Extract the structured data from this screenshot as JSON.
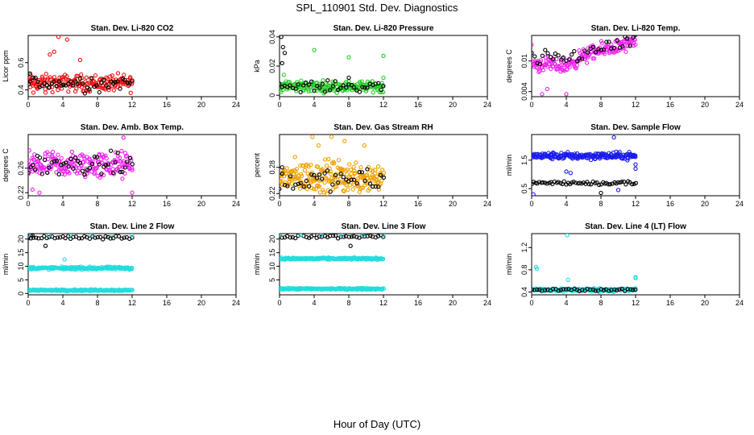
{
  "figure": {
    "title": "SPL_110901  Std. Dev. Diagnostics",
    "xlabel": "Hour of Day (UTC)"
  },
  "colors": {
    "black": "#000000",
    "red": "#ee1111",
    "green": "#22cc22",
    "magenta": "#ee22ee",
    "orange": "#f0a000",
    "blue": "#1a1aee",
    "cyan": "#22dddd"
  },
  "chart_data": [
    {
      "type": "scatter",
      "title": "Stan. Dev. Li-820 CO2",
      "ylabel": "Licor ppm",
      "xlim": [
        0,
        24
      ],
      "ylim": [
        0.35,
        0.8
      ],
      "xticks": [
        0,
        4,
        8,
        12,
        16,
        20,
        24
      ],
      "yticks": [
        0.4,
        0.6
      ],
      "series": [
        {
          "name": "co2-red",
          "color": "red",
          "xrange": [
            0,
            12
          ],
          "n": 170,
          "mean": 0.45,
          "spread": 0.05,
          "outliers": [
            [
              3.5,
              0.79
            ],
            [
              4.5,
              0.77
            ],
            [
              3.0,
              0.68
            ],
            [
              2.5,
              0.66
            ],
            [
              6.0,
              0.62
            ],
            [
              0.6,
              0.38
            ],
            [
              2.0,
              0.38
            ]
          ]
        },
        {
          "name": "co2-black",
          "color": "black",
          "xrange": [
            0,
            12
          ],
          "n": 45,
          "mean": 0.45,
          "spread": 0.05,
          "outliers": [
            [
              0.2,
              0.52
            ]
          ]
        }
      ]
    },
    {
      "type": "scatter",
      "title": "Stan. Dev. Li-820 Pressure",
      "ylabel": "kPa",
      "xlim": [
        0,
        24
      ],
      "ylim": [
        -0.001,
        0.041
      ],
      "xticks": [
        0,
        4,
        8,
        12,
        16,
        20,
        24
      ],
      "yticks": [
        0.0,
        0.02,
        0.04
      ],
      "series": [
        {
          "name": "pressure-green",
          "color": "green",
          "xrange": [
            0,
            12
          ],
          "n": 170,
          "mean": 0.006,
          "spread": 0.003,
          "outliers": [
            [
              4.0,
              0.031
            ],
            [
              8.0,
              0.026
            ],
            [
              12.0,
              0.027
            ],
            [
              0.5,
              0.014
            ],
            [
              2.5,
              0.01
            ],
            [
              12,
              0.012
            ]
          ]
        },
        {
          "name": "pressure-black",
          "color": "black",
          "xrange": [
            0,
            12
          ],
          "n": 40,
          "mean": 0.006,
          "spread": 0.003,
          "outliers": [
            [
              0.2,
              0.04
            ],
            [
              0.4,
              0.033
            ],
            [
              0.6,
              0.029
            ],
            [
              0.3,
              0.022
            ],
            [
              8,
              0.012
            ]
          ]
        }
      ]
    },
    {
      "type": "scatter",
      "title": "Stan. Dev. Li-820 Temp.",
      "ylabel": "degrees C",
      "xlim": [
        0,
        24
      ],
      "ylim": [
        0.003,
        0.015
      ],
      "xticks": [
        0,
        4,
        8,
        12,
        16,
        20,
        24
      ],
      "yticks": [
        0.004,
        0.01
      ],
      "series": [
        {
          "name": "temp-magenta",
          "color": "magenta",
          "xrange": [
            0,
            12
          ],
          "n": 180,
          "mean": 0.0095,
          "spread": 0.0012,
          "trend": [
            [
              0,
              0.0095
            ],
            [
              4,
              0.009
            ],
            [
              6,
              0.011
            ],
            [
              9,
              0.0125
            ],
            [
              12,
              0.0135
            ]
          ],
          "outliers": [
            [
              1.2,
              0.0035
            ],
            [
              4,
              0.0035
            ],
            [
              1.8,
              0.0045
            ]
          ]
        },
        {
          "name": "temp-black",
          "color": "black",
          "xrange": [
            0,
            12
          ],
          "n": 40,
          "mean": 0.0095,
          "spread": 0.0012,
          "trend": [
            [
              0,
              0.0105
            ],
            [
              4,
              0.0105
            ],
            [
              6,
              0.0115
            ],
            [
              9,
              0.013
            ],
            [
              12,
              0.0135
            ]
          ],
          "outliers": []
        }
      ]
    },
    {
      "type": "scatter",
      "title": "Stan. Dev. Amb. Box Temp.",
      "ylabel": "degrees C",
      "xlim": [
        0,
        24
      ],
      "ylim": [
        0.215,
        0.315
      ],
      "xticks": [
        0,
        4,
        8,
        12,
        16,
        20,
        24
      ],
      "yticks": [
        0.22,
        0.26
      ],
      "series": [
        {
          "name": "boxtemp-magenta",
          "color": "magenta",
          "xrange": [
            0,
            12
          ],
          "n": 190,
          "mean": 0.265,
          "spread": 0.018,
          "outliers": [
            [
              11,
              0.31
            ],
            [
              0.5,
              0.225
            ],
            [
              12,
              0.22
            ],
            [
              1.3,
              0.22
            ]
          ]
        },
        {
          "name": "boxtemp-black",
          "color": "black",
          "xrange": [
            0,
            12
          ],
          "n": 45,
          "mean": 0.265,
          "spread": 0.015,
          "outliers": []
        }
      ]
    },
    {
      "type": "scatter",
      "title": "Stan. Dev. Gas Stream RH",
      "ylabel": "percent",
      "xlim": [
        0,
        24
      ],
      "ylim": [
        0.215,
        0.355
      ],
      "xticks": [
        0,
        4,
        8,
        12,
        16,
        20,
        24
      ],
      "yticks": [
        0.22,
        0.28
      ],
      "series": [
        {
          "name": "rh-orange",
          "color": "orange",
          "xrange": [
            0,
            12
          ],
          "n": 230,
          "mean": 0.258,
          "spread": 0.03,
          "outliers": [
            [
              3.8,
              0.35
            ],
            [
              6.0,
              0.35
            ],
            [
              7.5,
              0.34
            ],
            [
              9.8,
              0.33
            ],
            [
              4.5,
              0.33
            ]
          ]
        },
        {
          "name": "rh-black",
          "color": "black",
          "xrange": [
            0,
            12
          ],
          "n": 40,
          "mean": 0.25,
          "spread": 0.02,
          "outliers": [
            [
              0.3,
              0.28
            ]
          ]
        }
      ]
    },
    {
      "type": "scatter",
      "title": "Stan. Dev. Sample Flow",
      "ylabel": "ml/min",
      "xlim": [
        0,
        24
      ],
      "ylim": [
        0.25,
        2.4
      ],
      "xticks": [
        0,
        4,
        8,
        12,
        16,
        20,
        24
      ],
      "yticks": [
        0.5,
        1.5
      ],
      "series": [
        {
          "name": "flow-blue",
          "color": "blue",
          "xrange": [
            0,
            12
          ],
          "n": 200,
          "mean": 1.65,
          "spread": 0.1,
          "outliers": [
            [
              4.0,
              1.1
            ],
            [
              4.5,
              1.05
            ],
            [
              9.5,
              2.3
            ],
            [
              10,
              0.45
            ],
            [
              0.2,
              0.3
            ],
            [
              12,
              1.2
            ],
            [
              12,
              1.35
            ]
          ]
        },
        {
          "name": "flow-black",
          "color": "black",
          "xrange": [
            0,
            12
          ],
          "n": 55,
          "mean": 0.7,
          "spread": 0.06,
          "outliers": [
            [
              8,
              0.35
            ]
          ]
        }
      ]
    },
    {
      "type": "scatter",
      "title": "Stan. Dev. Line 2 Flow",
      "ylabel": "ml/min",
      "xlim": [
        0,
        24
      ],
      "ylim": [
        -0.5,
        22
      ],
      "xticks": [
        0,
        4,
        8,
        12,
        16,
        20,
        24
      ],
      "yticks": [
        0,
        5,
        10,
        15,
        20
      ],
      "series": [
        {
          "name": "line2-cyan-high",
          "color": "cyan",
          "xrange": [
            0,
            12
          ],
          "n": 170,
          "mean": 9.3,
          "spread": 0.4,
          "outliers": [
            [
              4.2,
              12.5
            ]
          ]
        },
        {
          "name": "line2-cyan-low",
          "color": "cyan",
          "xrange": [
            0,
            12
          ],
          "n": 170,
          "mean": 1.2,
          "spread": 0.25,
          "outliers": []
        },
        {
          "name": "line2-black",
          "color": "black",
          "xrange": [
            0,
            12
          ],
          "n": 40,
          "mean": 20.6,
          "spread": 0.5,
          "outliers": [
            [
              0.3,
              21.5
            ],
            [
              0.5,
              21.3
            ],
            [
              2,
              17.5
            ]
          ]
        },
        {
          "name": "line2-cyan-top",
          "color": "cyan",
          "xrange": [
            0,
            12
          ],
          "n": 6,
          "mean": 21.6,
          "spread": 0.2,
          "outliers": []
        }
      ]
    },
    {
      "type": "scatter",
      "title": "Stan. Dev. Line 3 Flow",
      "ylabel": "ml/min",
      "xlim": [
        0,
        24
      ],
      "ylim": [
        -0.5,
        22
      ],
      "xticks": [
        0,
        4,
        8,
        12,
        16,
        20,
        24
      ],
      "yticks": [
        5,
        10,
        15,
        20
      ],
      "series": [
        {
          "name": "line3-cyan-high",
          "color": "cyan",
          "xrange": [
            0,
            12
          ],
          "n": 170,
          "mean": 12.8,
          "spread": 0.3,
          "outliers": []
        },
        {
          "name": "line3-cyan-low",
          "color": "cyan",
          "xrange": [
            0,
            12
          ],
          "n": 170,
          "mean": 1.7,
          "spread": 0.25,
          "outliers": []
        },
        {
          "name": "line3-black",
          "color": "black",
          "xrange": [
            0,
            12
          ],
          "n": 40,
          "mean": 20.9,
          "spread": 0.5,
          "outliers": [
            [
              8.2,
              17.5
            ]
          ]
        },
        {
          "name": "line3-cyan-top",
          "color": "cyan",
          "xrange": [
            0,
            12
          ],
          "n": 6,
          "mean": 21.5,
          "spread": 0.2,
          "outliers": []
        }
      ]
    },
    {
      "type": "scatter",
      "title": "Stan. Dev. Line 4 (LT) Flow",
      "ylabel": "ml/min",
      "xlim": [
        0,
        24
      ],
      "ylim": [
        0.35,
        1.45
      ],
      "xticks": [
        0,
        4,
        8,
        12,
        16,
        20,
        24
      ],
      "yticks": [
        0.4,
        0.8,
        1.2
      ],
      "series": [
        {
          "name": "line4-cyan",
          "color": "cyan",
          "xrange": [
            0,
            12
          ],
          "n": 160,
          "mean": 0.44,
          "spread": 0.025,
          "outliers": [
            [
              4.1,
              1.42
            ],
            [
              0.5,
              0.85
            ],
            [
              0.6,
              0.82
            ],
            [
              12,
              0.67
            ],
            [
              12,
              0.65
            ],
            [
              4.2,
              0.62
            ]
          ]
        },
        {
          "name": "line4-black",
          "color": "black",
          "xrange": [
            0,
            12
          ],
          "n": 40,
          "mean": 0.44,
          "spread": 0.02,
          "outliers": []
        }
      ]
    }
  ]
}
